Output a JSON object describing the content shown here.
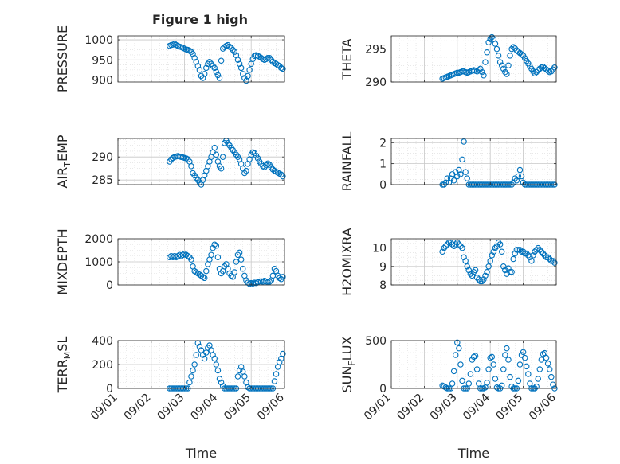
{
  "figure": {
    "title": "Figure 1 high",
    "marker_color": "#0072BD"
  },
  "chart_data": [
    {
      "type": "scatter",
      "ylabel": "PRESSURE",
      "ylim": [
        895,
        1010
      ],
      "yticks": [
        {
          "v": 900,
          "label": "900"
        },
        {
          "v": 950,
          "label": "950"
        },
        {
          "v": 1000,
          "label": "1000"
        }
      ],
      "xticks": [],
      "xlim": [
        0,
        5
      ],
      "grid": true,
      "x": [
        1.55,
        1.6,
        1.65,
        1.7,
        1.75,
        1.8,
        1.85,
        1.9,
        1.95,
        2.0,
        2.05,
        2.1,
        2.15,
        2.2,
        2.25,
        2.3,
        2.35,
        2.4,
        2.45,
        2.5,
        2.55,
        2.6,
        2.65,
        2.7,
        2.75,
        2.8,
        2.85,
        2.9,
        2.95,
        3.0,
        3.05,
        3.1,
        3.15,
        3.2,
        3.25,
        3.3,
        3.35,
        3.4,
        3.45,
        3.5,
        3.55,
        3.6,
        3.65,
        3.7,
        3.75,
        3.8,
        3.85,
        3.9,
        3.95,
        4.0,
        4.05,
        4.1,
        4.15,
        4.2,
        4.25,
        4.3,
        4.35,
        4.4,
        4.45,
        4.5,
        4.55,
        4.6,
        4.65,
        4.7,
        4.75,
        4.8,
        4.85,
        4.9,
        4.95
      ],
      "y": [
        985,
        987,
        988,
        990,
        987,
        985,
        983,
        982,
        980,
        978,
        976,
        975,
        973,
        970,
        965,
        955,
        945,
        935,
        925,
        910,
        905,
        915,
        930,
        940,
        945,
        940,
        935,
        930,
        920,
        912,
        905,
        948,
        978,
        982,
        985,
        987,
        983,
        980,
        975,
        970,
        962,
        950,
        940,
        930,
        915,
        905,
        898,
        910,
        925,
        940,
        952,
        960,
        962,
        960,
        958,
        955,
        952,
        950,
        952,
        955,
        955,
        950,
        945,
        942,
        940,
        937,
        935,
        930,
        928
      ]
    },
    {
      "type": "scatter",
      "ylabel": "THETA",
      "ylim": [
        290,
        297
      ],
      "yticks": [
        {
          "v": 290,
          "label": "290"
        },
        {
          "v": 295,
          "label": "295"
        }
      ],
      "xticks": [],
      "xlim": [
        0,
        5
      ],
      "grid": true,
      "x": [
        1.55,
        1.6,
        1.65,
        1.7,
        1.75,
        1.8,
        1.85,
        1.9,
        1.95,
        2.0,
        2.05,
        2.1,
        2.15,
        2.2,
        2.25,
        2.3,
        2.35,
        2.4,
        2.45,
        2.5,
        2.55,
        2.6,
        2.65,
        2.7,
        2.75,
        2.8,
        2.85,
        2.9,
        2.95,
        3.0,
        3.05,
        3.1,
        3.15,
        3.2,
        3.25,
        3.3,
        3.35,
        3.4,
        3.45,
        3.5,
        3.55,
        3.6,
        3.65,
        3.7,
        3.75,
        3.8,
        3.85,
        3.9,
        3.95,
        4.0,
        4.05,
        4.1,
        4.15,
        4.2,
        4.25,
        4.3,
        4.35,
        4.4,
        4.45,
        4.5,
        4.55,
        4.6,
        4.65,
        4.7,
        4.75,
        4.8,
        4.85,
        4.9,
        4.95
      ],
      "y": [
        290.5,
        290.6,
        290.7,
        290.8,
        290.9,
        291.0,
        291.1,
        291.2,
        291.3,
        291.4,
        291.4,
        291.5,
        291.6,
        291.6,
        291.5,
        291.4,
        291.5,
        291.6,
        291.7,
        291.8,
        291.7,
        291.6,
        291.8,
        292.0,
        291.5,
        291.0,
        293.0,
        294.5,
        296.0,
        296.5,
        296.8,
        296.5,
        295.8,
        295.0,
        294.0,
        293.0,
        292.5,
        292.0,
        291.5,
        291.2,
        292.5,
        294.0,
        295.0,
        295.3,
        295.1,
        294.8,
        294.6,
        294.4,
        294.2,
        294.0,
        293.6,
        293.2,
        292.8,
        292.4,
        292.0,
        291.6,
        291.3,
        291.5,
        291.8,
        292.0,
        292.2,
        292.3,
        292.1,
        291.9,
        291.7,
        291.5,
        291.6,
        291.9,
        292.2
      ]
    },
    {
      "type": "scatter",
      "ylabel": "AIR_TEMP",
      "ylim": [
        284,
        294
      ],
      "yticks": [
        {
          "v": 285,
          "label": "285"
        },
        {
          "v": 290,
          "label": "290"
        }
      ],
      "xticks": [],
      "xlim": [
        0,
        5
      ],
      "grid": true,
      "x": [
        1.55,
        1.6,
        1.65,
        1.7,
        1.75,
        1.8,
        1.85,
        1.9,
        1.95,
        2.0,
        2.05,
        2.1,
        2.15,
        2.2,
        2.25,
        2.3,
        2.35,
        2.4,
        2.45,
        2.5,
        2.55,
        2.6,
        2.65,
        2.7,
        2.75,
        2.8,
        2.85,
        2.9,
        2.95,
        3.0,
        3.05,
        3.1,
        3.15,
        3.2,
        3.25,
        3.3,
        3.35,
        3.4,
        3.45,
        3.5,
        3.55,
        3.6,
        3.65,
        3.7,
        3.75,
        3.8,
        3.85,
        3.9,
        3.95,
        4.0,
        4.05,
        4.1,
        4.15,
        4.2,
        4.25,
        4.3,
        4.35,
        4.4,
        4.45,
        4.5,
        4.55,
        4.6,
        4.65,
        4.7,
        4.75,
        4.8,
        4.85,
        4.9,
        4.95
      ],
      "y": [
        289.0,
        289.5,
        289.8,
        290.0,
        290.1,
        290.2,
        290.1,
        290.0,
        289.9,
        289.8,
        289.7,
        289.5,
        289.0,
        288.0,
        286.5,
        286.0,
        285.5,
        285.0,
        284.5,
        284.0,
        285.0,
        286.0,
        287.0,
        288.0,
        289.0,
        290.0,
        291.0,
        292.0,
        290.5,
        289.0,
        288.0,
        287.5,
        290.0,
        293.0,
        293.5,
        293.0,
        292.5,
        292.0,
        291.5,
        291.0,
        290.5,
        290.0,
        289.5,
        288.5,
        287.5,
        286.5,
        287.0,
        288.5,
        289.5,
        290.5,
        291.0,
        290.8,
        290.3,
        289.7,
        289.0,
        288.5,
        288.0,
        287.8,
        288.2,
        288.6,
        288.3,
        287.8,
        287.3,
        287.0,
        286.8,
        286.6,
        286.4,
        286.2,
        285.8
      ]
    },
    {
      "type": "scatter",
      "ylabel": "RAINFALL",
      "ylim": [
        0,
        2.2
      ],
      "yticks": [
        {
          "v": 0,
          "label": "0"
        },
        {
          "v": 1,
          "label": "1"
        },
        {
          "v": 2,
          "label": "2"
        }
      ],
      "xticks": [],
      "xlim": [
        0,
        5
      ],
      "grid": true,
      "x": [
        1.55,
        1.6,
        1.65,
        1.7,
        1.75,
        1.8,
        1.85,
        1.9,
        1.95,
        2.0,
        2.05,
        2.1,
        2.15,
        2.2,
        2.25,
        2.3,
        2.35,
        2.4,
        2.45,
        2.5,
        2.55,
        2.6,
        2.65,
        2.7,
        2.75,
        2.8,
        2.85,
        2.9,
        2.95,
        3.0,
        3.05,
        3.1,
        3.15,
        3.2,
        3.25,
        3.3,
        3.35,
        3.4,
        3.45,
        3.5,
        3.55,
        3.6,
        3.65,
        3.7,
        3.75,
        3.8,
        3.85,
        3.9,
        3.95,
        4.0,
        4.05,
        4.1,
        4.15,
        4.2,
        4.25,
        4.3,
        4.35,
        4.4,
        4.45,
        4.5,
        4.55,
        4.6,
        4.65,
        4.7,
        4.75,
        4.8,
        4.85,
        4.9,
        4.95
      ],
      "y": [
        0,
        0,
        0.1,
        0.3,
        0.1,
        0.3,
        0.5,
        0.2,
        0.6,
        0.4,
        0.7,
        0.5,
        1.2,
        2.05,
        0.6,
        0.3,
        0,
        0,
        0,
        0,
        0,
        0,
        0,
        0,
        0,
        0,
        0,
        0,
        0,
        0,
        0,
        0,
        0,
        0,
        0,
        0,
        0,
        0,
        0,
        0,
        0,
        0,
        0,
        0.1,
        0.3,
        0.2,
        0.4,
        0.7,
        0.4,
        0.1,
        0,
        0,
        0,
        0,
        0,
        0,
        0,
        0,
        0,
        0,
        0,
        0,
        0,
        0,
        0,
        0,
        0,
        0,
        0
      ]
    },
    {
      "type": "scatter",
      "ylabel": "MIXDEPTH",
      "ylim": [
        0,
        2000
      ],
      "yticks": [
        {
          "v": 0,
          "label": "0"
        },
        {
          "v": 1000,
          "label": "1000"
        },
        {
          "v": 2000,
          "label": "2000"
        }
      ],
      "xticks": [],
      "xlim": [
        0,
        5
      ],
      "grid": true,
      "x": [
        1.55,
        1.6,
        1.65,
        1.7,
        1.75,
        1.8,
        1.85,
        1.9,
        1.95,
        2.0,
        2.05,
        2.1,
        2.15,
        2.2,
        2.25,
        2.3,
        2.35,
        2.4,
        2.45,
        2.5,
        2.55,
        2.6,
        2.65,
        2.7,
        2.75,
        2.8,
        2.85,
        2.9,
        2.95,
        3.0,
        3.05,
        3.1,
        3.15,
        3.2,
        3.25,
        3.3,
        3.35,
        3.4,
        3.45,
        3.5,
        3.55,
        3.6,
        3.65,
        3.7,
        3.75,
        3.8,
        3.85,
        3.9,
        3.95,
        4.0,
        4.05,
        4.1,
        4.15,
        4.2,
        4.25,
        4.3,
        4.35,
        4.4,
        4.45,
        4.5,
        4.55,
        4.6,
        4.65,
        4.7,
        4.75,
        4.8,
        4.85,
        4.9,
        4.95
      ],
      "y": [
        1200,
        1250,
        1200,
        1250,
        1200,
        1250,
        1300,
        1250,
        1300,
        1350,
        1300,
        1250,
        1200,
        1100,
        800,
        600,
        550,
        500,
        450,
        400,
        350,
        300,
        600,
        900,
        1100,
        1300,
        1600,
        1750,
        1700,
        1200,
        700,
        500,
        600,
        800,
        900,
        700,
        500,
        400,
        350,
        550,
        1000,
        1300,
        1400,
        1100,
        700,
        400,
        200,
        100,
        50,
        80,
        60,
        100,
        80,
        120,
        150,
        160,
        140,
        180,
        150,
        120,
        140,
        200,
        400,
        700,
        600,
        400,
        300,
        250,
        350
      ]
    },
    {
      "type": "scatter",
      "ylabel": "H2OMIXRA",
      "ylim": [
        8,
        10.5
      ],
      "yticks": [
        {
          "v": 8,
          "label": "8"
        },
        {
          "v": 9,
          "label": "9"
        },
        {
          "v": 10,
          "label": "10"
        }
      ],
      "xticks": [],
      "xlim": [
        0,
        5
      ],
      "grid": true,
      "x": [
        1.55,
        1.6,
        1.65,
        1.7,
        1.75,
        1.8,
        1.85,
        1.9,
        1.95,
        2.0,
        2.05,
        2.1,
        2.15,
        2.2,
        2.25,
        2.3,
        2.35,
        2.4,
        2.45,
        2.5,
        2.55,
        2.6,
        2.65,
        2.7,
        2.75,
        2.8,
        2.85,
        2.9,
        2.95,
        3.0,
        3.05,
        3.1,
        3.15,
        3.2,
        3.25,
        3.3,
        3.35,
        3.4,
        3.45,
        3.5,
        3.55,
        3.6,
        3.65,
        3.7,
        3.75,
        3.8,
        3.85,
        3.9,
        3.95,
        4.0,
        4.05,
        4.1,
        4.15,
        4.2,
        4.25,
        4.3,
        4.35,
        4.4,
        4.45,
        4.5,
        4.55,
        4.6,
        4.65,
        4.7,
        4.75,
        4.8,
        4.85,
        4.9,
        4.95
      ],
      "y": [
        9.8,
        10.0,
        10.1,
        10.2,
        10.3,
        10.3,
        10.2,
        10.1,
        10.2,
        10.3,
        10.2,
        10.1,
        10.0,
        9.5,
        9.3,
        9.0,
        8.8,
        8.6,
        8.5,
        8.7,
        8.8,
        8.4,
        8.3,
        8.2,
        8.2,
        8.3,
        8.5,
        8.7,
        9.0,
        9.3,
        9.6,
        9.8,
        10.0,
        10.1,
        10.3,
        10.2,
        9.8,
        9.0,
        8.8,
        8.6,
        8.9,
        8.7,
        8.7,
        9.4,
        9.7,
        9.9,
        9.9,
        9.9,
        9.8,
        9.8,
        9.7,
        9.7,
        9.6,
        9.5,
        9.3,
        9.6,
        9.8,
        9.9,
        10.0,
        9.9,
        9.8,
        9.7,
        9.6,
        9.5,
        9.5,
        9.4,
        9.3,
        9.3,
        9.2
      ]
    },
    {
      "type": "scatter",
      "ylabel": "TERR_MSL",
      "ylim": [
        0,
        400
      ],
      "yticks": [
        {
          "v": 0,
          "label": "0"
        },
        {
          "v": 200,
          "label": "200"
        },
        {
          "v": 400,
          "label": "400"
        }
      ],
      "xticks": [
        {
          "v": 0,
          "label": "09/01"
        },
        {
          "v": 1,
          "label": "09/02"
        },
        {
          "v": 2,
          "label": "09/03"
        },
        {
          "v": 3,
          "label": "09/04"
        },
        {
          "v": 4,
          "label": "09/05"
        },
        {
          "v": 5,
          "label": "09/06"
        }
      ],
      "xlim": [
        0,
        5
      ],
      "xlabel": "Time",
      "grid": true,
      "x": [
        1.55,
        1.6,
        1.65,
        1.7,
        1.75,
        1.8,
        1.85,
        1.9,
        1.95,
        2.0,
        2.05,
        2.1,
        2.15,
        2.2,
        2.25,
        2.3,
        2.35,
        2.4,
        2.45,
        2.5,
        2.55,
        2.6,
        2.65,
        2.7,
        2.75,
        2.8,
        2.85,
        2.9,
        2.95,
        3.0,
        3.05,
        3.1,
        3.15,
        3.2,
        3.25,
        3.3,
        3.35,
        3.4,
        3.45,
        3.5,
        3.55,
        3.6,
        3.65,
        3.7,
        3.75,
        3.8,
        3.85,
        3.9,
        3.95,
        4.0,
        4.05,
        4.1,
        4.15,
        4.2,
        4.25,
        4.3,
        4.35,
        4.4,
        4.45,
        4.5,
        4.55,
        4.6,
        4.65,
        4.7,
        4.75,
        4.8,
        4.85,
        4.9,
        4.95
      ],
      "y": [
        0,
        0,
        0,
        0,
        0,
        0,
        0,
        0,
        0,
        0,
        0,
        0,
        50,
        100,
        150,
        200,
        280,
        380,
        350,
        320,
        280,
        250,
        300,
        340,
        360,
        320,
        280,
        250,
        200,
        150,
        80,
        50,
        20,
        0,
        0,
        0,
        0,
        0,
        0,
        0,
        0,
        100,
        150,
        180,
        140,
        100,
        50,
        10,
        0,
        0,
        0,
        0,
        0,
        0,
        0,
        0,
        0,
        0,
        0,
        0,
        0,
        0,
        0,
        60,
        120,
        180,
        220,
        250,
        290
      ]
    },
    {
      "type": "scatter",
      "ylabel": "SUN_FLUX",
      "ylim": [
        0,
        500
      ],
      "yticks": [
        {
          "v": 0,
          "label": "0"
        },
        {
          "v": 500,
          "label": "500"
        }
      ],
      "xticks": [
        {
          "v": 0,
          "label": "09/01"
        },
        {
          "v": 1,
          "label": "09/02"
        },
        {
          "v": 2,
          "label": "09/03"
        },
        {
          "v": 3,
          "label": "09/04"
        },
        {
          "v": 4,
          "label": "09/05"
        },
        {
          "v": 5,
          "label": "09/06"
        }
      ],
      "xlim": [
        0,
        5
      ],
      "xlabel": "Time",
      "grid": true,
      "x": [
        1.55,
        1.6,
        1.65,
        1.7,
        1.75,
        1.8,
        1.85,
        1.9,
        1.95,
        2.0,
        2.05,
        2.1,
        2.15,
        2.2,
        2.25,
        2.3,
        2.35,
        2.4,
        2.45,
        2.5,
        2.55,
        2.6,
        2.65,
        2.7,
        2.75,
        2.8,
        2.85,
        2.9,
        2.95,
        3.0,
        3.05,
        3.1,
        3.15,
        3.2,
        3.25,
        3.3,
        3.35,
        3.4,
        3.45,
        3.5,
        3.55,
        3.6,
        3.65,
        3.7,
        3.75,
        3.8,
        3.85,
        3.9,
        3.95,
        4.0,
        4.05,
        4.1,
        4.15,
        4.2,
        4.25,
        4.3,
        4.35,
        4.4,
        4.45,
        4.5,
        4.55,
        4.6,
        4.65,
        4.7,
        4.75,
        4.8,
        4.85,
        4.9,
        4.95
      ],
      "y": [
        30,
        20,
        10,
        0,
        0,
        0,
        50,
        180,
        350,
        480,
        420,
        250,
        80,
        0,
        0,
        0,
        50,
        150,
        300,
        330,
        340,
        200,
        50,
        0,
        0,
        0,
        10,
        60,
        200,
        320,
        330,
        250,
        100,
        10,
        0,
        0,
        30,
        200,
        350,
        420,
        300,
        120,
        20,
        0,
        0,
        0,
        80,
        250,
        350,
        380,
        320,
        230,
        150,
        50,
        0,
        0,
        0,
        20,
        100,
        200,
        300,
        360,
        370,
        320,
        260,
        200,
        120,
        40,
        0
      ]
    }
  ]
}
